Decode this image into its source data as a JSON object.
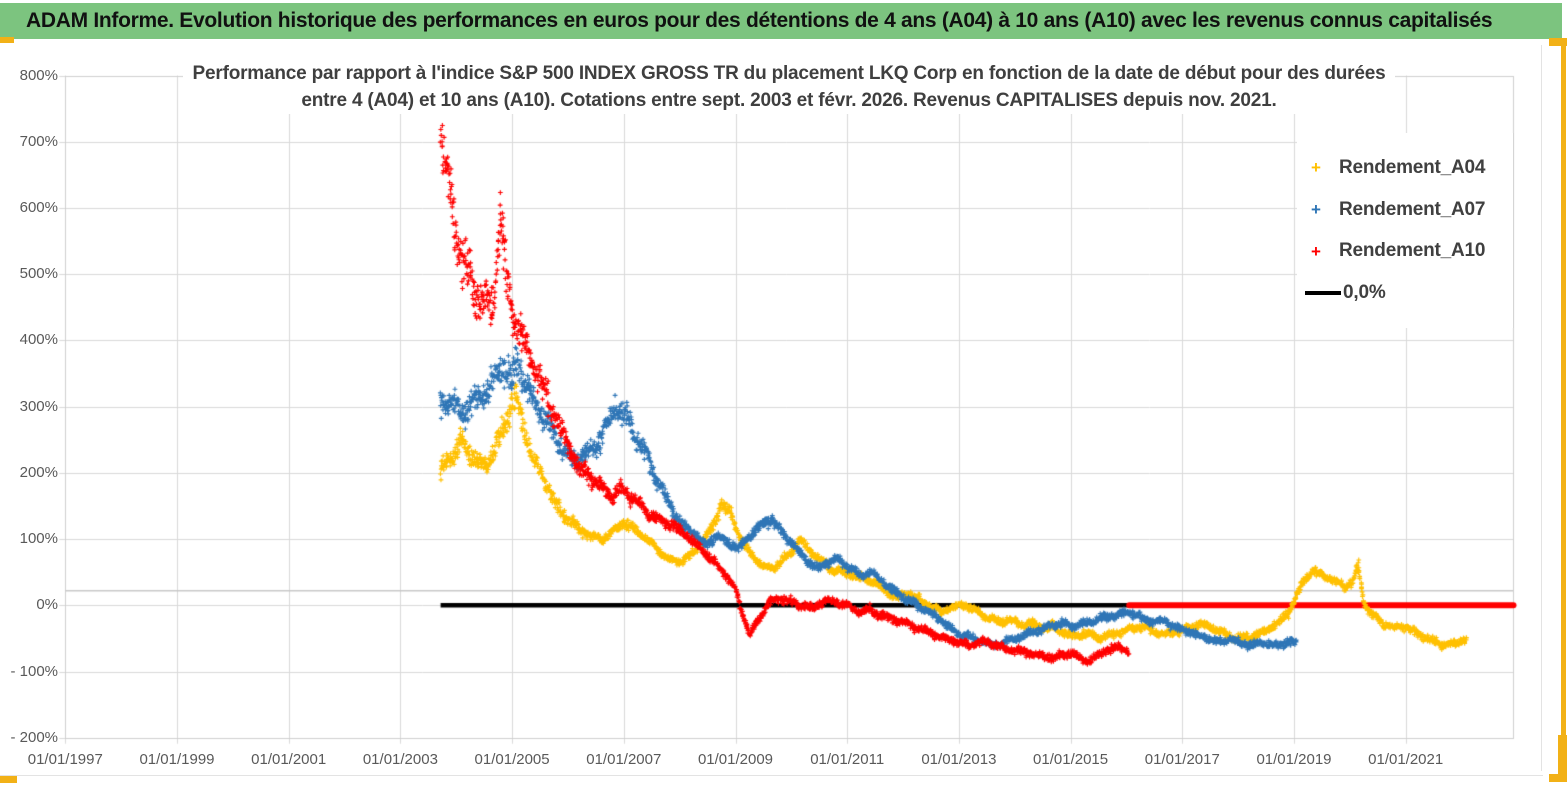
{
  "page": {
    "background": "#FFFFFF",
    "accent_yellow": "#F2B117",
    "header": {
      "title": "ADAM Informe. Evolution historique des performances en euros pour des détentions de 4 ans (A04) à 10 ans (A10) avec les revenus connus capitalisés",
      "background": "#7CC47F"
    }
  },
  "chart_data": {
    "type": "scatter",
    "title_line1": "Performance par rapport à l'indice S&P 500 INDEX GROSS TR  du placement LKQ Corp en fonction de la date de début pour des durées",
    "title_line2": "entre 4 (A04) et 10 ans (A10). Cotations entre sept. 2003 et févr. 2026. Revenus CAPITALISES depuis nov. 2021.",
    "x_axis": {
      "tick_labels": [
        "01/01/1997",
        "01/01/1999",
        "01/01/2001",
        "01/01/2003",
        "01/01/2005",
        "01/01/2007",
        "01/01/2009",
        "01/01/2011",
        "01/01/2013",
        "01/01/2015",
        "01/01/2017",
        "01/01/2019",
        "01/01/2021"
      ],
      "tick_years": [
        1997,
        1999,
        2001,
        2003,
        2005,
        2007,
        2009,
        2011,
        2013,
        2015,
        2017,
        2019,
        2021
      ],
      "range_years": [
        1996.9,
        2022.95
      ]
    },
    "y_axis": {
      "tick_labels": [
        "800%",
        "700%",
        "600%",
        "500%",
        "400%",
        "300%",
        "200%",
        "100%",
        "0%",
        "- 100%",
        "- 200%"
      ],
      "tick_values": [
        800,
        700,
        600,
        500,
        400,
        300,
        200,
        100,
        0,
        -100,
        -200
      ],
      "unit": "%",
      "range": [
        -200,
        800
      ]
    },
    "legend": [
      {
        "label": "Rendement_A04",
        "marker": "+",
        "color": "#FFC000"
      },
      {
        "label": "Rendement_A07",
        "marker": "+",
        "color": "#2E75B6"
      },
      {
        "label": "Rendement_A10",
        "marker": "+",
        "color": "#FF0000"
      },
      {
        "label": "0,0%",
        "marker": "line",
        "color": "#000000"
      }
    ],
    "zero_line": {
      "label": "0,0%",
      "color": "#000000",
      "value": 0,
      "x_start_year": 2003.72,
      "x_end_year": 2016.05
    },
    "red_flat_zero_segment": {
      "color": "#FF0000",
      "value": 0,
      "x_start_year": 2016.05,
      "x_end_year": 2022.93
    },
    "reference_line": {
      "color": "#C8C8C8",
      "value": 22,
      "note": "unlabeled thin gray horizontal line across plot"
    },
    "gridline_color": "#D9D9D9",
    "axis_text_color": "#595959",
    "series": [
      {
        "name": "Rendement_A04",
        "color": "#FFC000",
        "points": [
          [
            2003.72,
            200
          ],
          [
            2003.9,
            225
          ],
          [
            2004.1,
            245
          ],
          [
            2004.3,
            225
          ],
          [
            2004.5,
            210
          ],
          [
            2004.7,
            240
          ],
          [
            2004.9,
            280
          ],
          [
            2005.05,
            315
          ],
          [
            2005.2,
            270
          ],
          [
            2005.35,
            230
          ],
          [
            2005.5,
            200
          ],
          [
            2005.65,
            175
          ],
          [
            2005.8,
            150
          ],
          [
            2006.0,
            130
          ],
          [
            2006.2,
            115
          ],
          [
            2006.4,
            105
          ],
          [
            2006.6,
            100
          ],
          [
            2006.8,
            110
          ],
          [
            2007.0,
            125
          ],
          [
            2007.2,
            115
          ],
          [
            2007.4,
            100
          ],
          [
            2007.6,
            85
          ],
          [
            2007.8,
            70
          ],
          [
            2008.0,
            65
          ],
          [
            2008.2,
            75
          ],
          [
            2008.4,
            95
          ],
          [
            2008.6,
            120
          ],
          [
            2008.75,
            155
          ],
          [
            2008.9,
            140
          ],
          [
            2009.05,
            110
          ],
          [
            2009.2,
            85
          ],
          [
            2009.35,
            70
          ],
          [
            2009.5,
            60
          ],
          [
            2009.65,
            55
          ],
          [
            2009.8,
            65
          ],
          [
            2010.0,
            80
          ],
          [
            2010.15,
            100
          ],
          [
            2010.3,
            85
          ],
          [
            2010.5,
            70
          ],
          [
            2010.7,
            55
          ],
          [
            2010.9,
            50
          ],
          [
            2011.1,
            45
          ],
          [
            2011.3,
            40
          ],
          [
            2011.5,
            35
          ],
          [
            2011.7,
            20
          ],
          [
            2011.9,
            12
          ],
          [
            2012.1,
            18
          ],
          [
            2012.3,
            8
          ],
          [
            2012.5,
            -2
          ],
          [
            2012.7,
            -10
          ],
          [
            2012.9,
            -4
          ],
          [
            2013.1,
            2
          ],
          [
            2013.3,
            -8
          ],
          [
            2013.5,
            -18
          ],
          [
            2013.7,
            -25
          ],
          [
            2013.9,
            -22
          ],
          [
            2014.1,
            -30
          ],
          [
            2014.3,
            -27
          ],
          [
            2014.5,
            -35
          ],
          [
            2014.7,
            -32
          ],
          [
            2014.9,
            -42
          ],
          [
            2015.1,
            -45
          ],
          [
            2015.3,
            -42
          ],
          [
            2015.5,
            -50
          ],
          [
            2015.7,
            -46
          ],
          [
            2015.9,
            -40
          ],
          [
            2016.1,
            -35
          ],
          [
            2016.3,
            -32
          ],
          [
            2016.5,
            -40
          ],
          [
            2016.7,
            -44
          ],
          [
            2016.9,
            -40
          ],
          [
            2017.1,
            -35
          ],
          [
            2017.3,
            -28
          ],
          [
            2017.5,
            -32
          ],
          [
            2017.7,
            -40
          ],
          [
            2017.9,
            -48
          ],
          [
            2018.1,
            -50
          ],
          [
            2018.3,
            -45
          ],
          [
            2018.5,
            -38
          ],
          [
            2018.7,
            -28
          ],
          [
            2018.9,
            -12
          ],
          [
            2019.05,
            15
          ],
          [
            2019.2,
            40
          ],
          [
            2019.35,
            52
          ],
          [
            2019.5,
            45
          ],
          [
            2019.7,
            38
          ],
          [
            2019.9,
            28
          ],
          [
            2020.05,
            35
          ],
          [
            2020.15,
            60
          ],
          [
            2020.25,
            5
          ],
          [
            2020.4,
            -15
          ],
          [
            2020.6,
            -28
          ],
          [
            2020.8,
            -35
          ],
          [
            2021.0,
            -32
          ],
          [
            2021.2,
            -42
          ],
          [
            2021.4,
            -50
          ],
          [
            2021.6,
            -58
          ],
          [
            2021.8,
            -60
          ],
          [
            2021.95,
            -55
          ],
          [
            2022.1,
            -50
          ]
        ]
      },
      {
        "name": "Rendement_A07",
        "color": "#2E75B6",
        "points": [
          [
            2003.72,
            310
          ],
          [
            2003.9,
            300
          ],
          [
            2004.1,
            290
          ],
          [
            2004.3,
            305
          ],
          [
            2004.5,
            320
          ],
          [
            2004.7,
            340
          ],
          [
            2004.85,
            365
          ],
          [
            2005.0,
            335
          ],
          [
            2005.1,
            370
          ],
          [
            2005.25,
            330
          ],
          [
            2005.45,
            300
          ],
          [
            2005.65,
            275
          ],
          [
            2005.85,
            245
          ],
          [
            2006.05,
            220
          ],
          [
            2006.25,
            225
          ],
          [
            2006.45,
            235
          ],
          [
            2006.65,
            260
          ],
          [
            2006.85,
            300
          ],
          [
            2007.05,
            285
          ],
          [
            2007.25,
            250
          ],
          [
            2007.45,
            215
          ],
          [
            2007.65,
            180
          ],
          [
            2007.85,
            150
          ],
          [
            2008.05,
            120
          ],
          [
            2008.25,
            110
          ],
          [
            2008.45,
            90
          ],
          [
            2008.65,
            105
          ],
          [
            2008.85,
            95
          ],
          [
            2009.05,
            85
          ],
          [
            2009.25,
            105
          ],
          [
            2009.45,
            120
          ],
          [
            2009.65,
            130
          ],
          [
            2009.85,
            110
          ],
          [
            2010.05,
            90
          ],
          [
            2010.25,
            70
          ],
          [
            2010.45,
            55
          ],
          [
            2010.65,
            65
          ],
          [
            2010.85,
            70
          ],
          [
            2011.05,
            55
          ],
          [
            2011.25,
            45
          ],
          [
            2011.45,
            50
          ],
          [
            2011.65,
            35
          ],
          [
            2011.85,
            20
          ],
          [
            2012.05,
            10
          ],
          [
            2012.25,
            0
          ],
          [
            2012.45,
            -10
          ],
          [
            2012.65,
            -20
          ],
          [
            2012.85,
            -35
          ],
          [
            2013.05,
            -45
          ],
          [
            2013.25,
            -50
          ],
          [
            2013.45,
            -55
          ],
          [
            2013.65,
            -60
          ],
          [
            2013.85,
            -55
          ],
          [
            2014.05,
            -50
          ],
          [
            2014.25,
            -42
          ],
          [
            2014.45,
            -38
          ],
          [
            2014.65,
            -30
          ],
          [
            2014.85,
            -28
          ],
          [
            2015.05,
            -32
          ],
          [
            2015.25,
            -28
          ],
          [
            2015.45,
            -22
          ],
          [
            2015.65,
            -18
          ],
          [
            2015.85,
            -14
          ],
          [
            2016.05,
            -10
          ],
          [
            2016.25,
            -18
          ],
          [
            2016.45,
            -25
          ],
          [
            2016.65,
            -22
          ],
          [
            2016.85,
            -32
          ],
          [
            2017.05,
            -38
          ],
          [
            2017.25,
            -45
          ],
          [
            2017.45,
            -50
          ],
          [
            2017.65,
            -55
          ],
          [
            2017.85,
            -50
          ],
          [
            2018.05,
            -57
          ],
          [
            2018.25,
            -60
          ],
          [
            2018.45,
            -55
          ],
          [
            2018.65,
            -60
          ],
          [
            2018.85,
            -57
          ],
          [
            2019.05,
            -55
          ]
        ]
      },
      {
        "name": "Rendement_A10",
        "color": "#FF0000",
        "points": [
          [
            2003.72,
            700
          ],
          [
            2003.8,
            660
          ],
          [
            2003.9,
            615
          ],
          [
            2004.0,
            560
          ],
          [
            2004.15,
            510
          ],
          [
            2004.3,
            480
          ],
          [
            2004.5,
            460
          ],
          [
            2004.65,
            450
          ],
          [
            2004.8,
            590
          ],
          [
            2004.9,
            490
          ],
          [
            2005.0,
            450
          ],
          [
            2005.2,
            400
          ],
          [
            2005.4,
            360
          ],
          [
            2005.6,
            320
          ],
          [
            2005.8,
            280
          ],
          [
            2006.0,
            240
          ],
          [
            2006.2,
            210
          ],
          [
            2006.5,
            185
          ],
          [
            2006.8,
            165
          ],
          [
            2007.0,
            175
          ],
          [
            2007.3,
            150
          ],
          [
            2007.6,
            130
          ],
          [
            2007.9,
            120
          ],
          [
            2008.2,
            100
          ],
          [
            2008.5,
            75
          ],
          [
            2008.8,
            50
          ],
          [
            2009.0,
            25
          ],
          [
            2009.1,
            -5
          ],
          [
            2009.25,
            -45
          ],
          [
            2009.4,
            -25
          ],
          [
            2009.6,
            5
          ],
          [
            2009.8,
            10
          ],
          [
            2010.0,
            5
          ],
          [
            2010.2,
            0
          ],
          [
            2010.4,
            -5
          ],
          [
            2010.6,
            8
          ],
          [
            2010.8,
            4
          ],
          [
            2011.0,
            0
          ],
          [
            2011.2,
            -10
          ],
          [
            2011.4,
            -6
          ],
          [
            2011.6,
            -15
          ],
          [
            2011.8,
            -20
          ],
          [
            2012.0,
            -25
          ],
          [
            2012.3,
            -35
          ],
          [
            2012.6,
            -45
          ],
          [
            2012.9,
            -55
          ],
          [
            2013.2,
            -60
          ],
          [
            2013.5,
            -55
          ],
          [
            2013.8,
            -65
          ],
          [
            2014.1,
            -70
          ],
          [
            2014.4,
            -75
          ],
          [
            2014.7,
            -80
          ],
          [
            2015.0,
            -72
          ],
          [
            2015.3,
            -85
          ],
          [
            2015.6,
            -70
          ],
          [
            2015.85,
            -62
          ],
          [
            2016.05,
            -70
          ]
        ]
      }
    ]
  }
}
